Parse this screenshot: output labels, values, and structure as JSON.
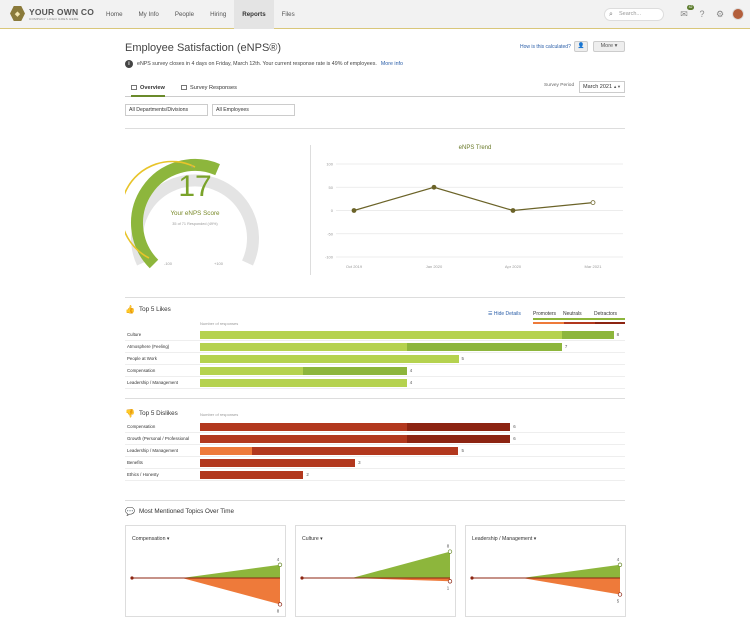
{
  "logo": {
    "name": "YOUR OWN CO",
    "tagline": "COMPANY LOGO GOES HERE"
  },
  "nav": {
    "items": [
      "Home",
      "My Info",
      "People",
      "Hiring",
      "Reports",
      "Files"
    ],
    "active": "Reports"
  },
  "search": {
    "placeholder": "Search..."
  },
  "inbox_badge": "42",
  "page": {
    "title": "Employee Satisfaction (eNPS®)",
    "how_link": "How is this calculated?",
    "more_button": "More",
    "notice": "eNPS survey closes in 4 days on Friday, March 12th. Your current response rate is 49% of employees.",
    "more_info": "More info"
  },
  "tabs": {
    "overview": "Overview",
    "responses": "Survey Responses"
  },
  "survey_period": {
    "label": "Survey Period",
    "value": "March 2021"
  },
  "filters": {
    "departments": "All Departments/Divisions",
    "employees": "All Employees"
  },
  "gauge": {
    "score": "17",
    "label": "Your eNPS Score",
    "sub": "35 of 71 Responded (49%)",
    "min": "-100",
    "mid": "0",
    "max": "+100",
    "value": 17
  },
  "trend": {
    "title": "eNPS Trend"
  },
  "likes": {
    "title": "Top 5 Likes",
    "axis": "Number of responses"
  },
  "dislikes": {
    "title": "Top 5 Dislikes",
    "axis": "Number of responses"
  },
  "legend": {
    "hide": "Hide Details",
    "promoters": "Promoters",
    "neutrals": "Neutrals",
    "detractors": "Detractors"
  },
  "topics": {
    "title": "Most Mentioned Topics Over Time",
    "cards": [
      "Compensation",
      "Culture",
      "Leadership / Management"
    ]
  },
  "colors": {
    "promoter": "#8db63c",
    "promoter_light": "#b5d24f",
    "neutral": "#ee7a3a",
    "detractor": "#b2381e",
    "detractor_dark": "#8c2412",
    "accent": "#7aa32a"
  },
  "chart_data": [
    {
      "type": "line",
      "title": "eNPS Trend",
      "x": [
        "Oct 2019",
        "Jan 2020",
        "Apr 2020",
        "Mar 2021"
      ],
      "ylim": [
        -100,
        100
      ],
      "yticks": [
        "100",
        "50",
        "0",
        "-50",
        "-100"
      ],
      "series": [
        {
          "values": [
            0,
            50,
            0,
            17
          ]
        }
      ]
    },
    {
      "type": "bar",
      "title": "Top 5 Likes",
      "categories": [
        "Culture",
        "Atmosphere (Feeling)",
        "People at Work",
        "Compensation",
        "Leadership / Management"
      ],
      "values": [
        8,
        7,
        5,
        4,
        4
      ],
      "series": [
        {
          "name": "Promoters",
          "values": [
            7,
            4,
            5,
            2,
            4
          ]
        },
        {
          "name": "Neutrals",
          "values": [
            1,
            3,
            0,
            2,
            0
          ]
        }
      ]
    },
    {
      "type": "bar",
      "title": "Top 5 Dislikes",
      "categories": [
        "Compensation",
        "Growth (Personal / Professional)",
        "Leadership / Management",
        "Benefits",
        "Ethics / Honesty"
      ],
      "values": [
        6,
        6,
        5,
        3,
        2
      ],
      "series": [
        {
          "name": "Neutrals",
          "values": [
            0,
            0,
            1,
            0,
            0
          ]
        },
        {
          "name": "Detractors",
          "values": [
            4,
            4,
            4,
            3,
            2
          ]
        },
        {
          "name": "Detractors (other)",
          "values": [
            2,
            2,
            0,
            0,
            0
          ]
        }
      ]
    },
    {
      "type": "area",
      "title": "Compensation",
      "end_values": {
        "promoters": 4,
        "detractors": 8
      }
    },
    {
      "type": "area",
      "title": "Culture",
      "end_values": {
        "promoters": 8,
        "detractors": 1
      }
    },
    {
      "type": "area",
      "title": "Leadership / Management",
      "end_values": {
        "promoters": 4,
        "detractors": 5
      }
    }
  ]
}
